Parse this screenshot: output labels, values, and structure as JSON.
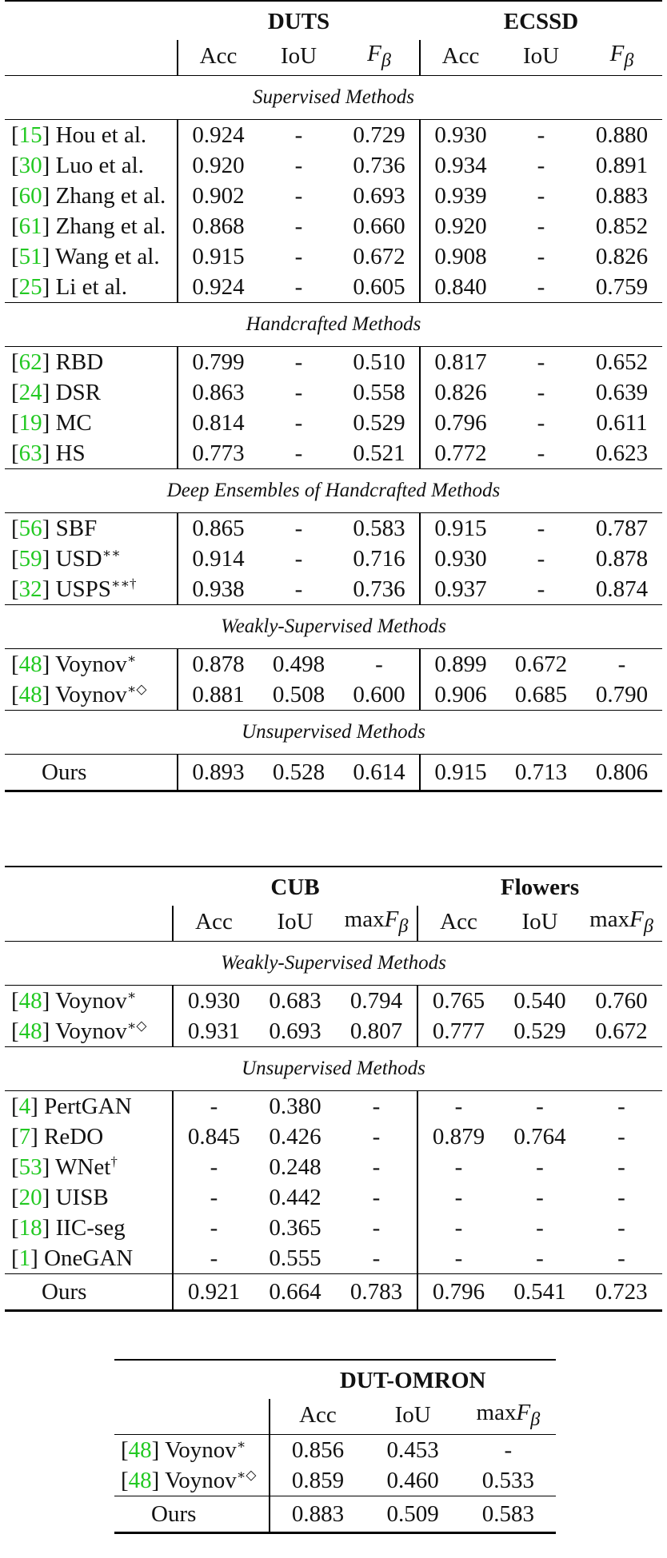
{
  "table1": {
    "datasets": [
      "DUTS",
      "ECSSD"
    ],
    "metrics": [
      "Acc",
      "IoU",
      "F",
      "β"
    ],
    "sections": [
      {
        "title": "Supervised Methods",
        "rows": [
          {
            "ref": "15",
            "name": "Hou et al.",
            "sup": "",
            "v": [
              "0.924",
              "-",
              "0.729",
              "0.930",
              "-",
              "0.880"
            ]
          },
          {
            "ref": "30",
            "name": "Luo et al.",
            "sup": "",
            "v": [
              "0.920",
              "-",
              "0.736",
              "0.934",
              "-",
              "0.891"
            ]
          },
          {
            "ref": "60",
            "name": "Zhang et al.",
            "sup": "",
            "v": [
              "0.902",
              "-",
              "0.693",
              "0.939",
              "-",
              "0.883"
            ]
          },
          {
            "ref": "61",
            "name": "Zhang et al.",
            "sup": "",
            "v": [
              "0.868",
              "-",
              "0.660",
              "0.920",
              "-",
              "0.852"
            ]
          },
          {
            "ref": "51",
            "name": "Wang et al.",
            "sup": "",
            "v": [
              "0.915",
              "-",
              "0.672",
              "0.908",
              "-",
              "0.826"
            ]
          },
          {
            "ref": "25",
            "name": "Li et al.",
            "sup": "",
            "v": [
              "0.924",
              "-",
              "0.605",
              "0.840",
              "-",
              "0.759"
            ]
          }
        ]
      },
      {
        "title": "Handcrafted Methods",
        "rows": [
          {
            "ref": "62",
            "name": "RBD",
            "sup": "",
            "v": [
              "0.799",
              "-",
              "0.510",
              "0.817",
              "-",
              "0.652"
            ]
          },
          {
            "ref": "24",
            "name": "DSR",
            "sup": "",
            "v": [
              "0.863",
              "-",
              "0.558",
              "0.826",
              "-",
              "0.639"
            ]
          },
          {
            "ref": "19",
            "name": "MC",
            "sup": "",
            "v": [
              "0.814",
              "-",
              "0.529",
              "0.796",
              "-",
              "0.611"
            ]
          },
          {
            "ref": "63",
            "name": "HS",
            "sup": "",
            "v": [
              "0.773",
              "-",
              "0.521",
              "0.772",
              "-",
              "0.623"
            ]
          }
        ]
      },
      {
        "title": "Deep Ensembles of Handcrafted Methods",
        "rows": [
          {
            "ref": "56",
            "name": "SBF",
            "sup": "",
            "v": [
              "0.865",
              "-",
              "0.583",
              "0.915",
              "-",
              "0.787"
            ]
          },
          {
            "ref": "59",
            "name": "USD",
            "sup": "∗∗",
            "v": [
              "0.914",
              "-",
              "0.716",
              "0.930",
              "-",
              "0.878"
            ]
          },
          {
            "ref": "32",
            "name": "USPS",
            "sup": "∗∗†",
            "v": [
              "0.938",
              "-",
              "0.736",
              "0.937",
              "-",
              "0.874"
            ]
          }
        ]
      },
      {
        "title": "Weakly-Supervised Methods",
        "rows": [
          {
            "ref": "48",
            "name": "Voynov",
            "sup": "∗",
            "v": [
              "0.878",
              "0.498",
              "-",
              "0.899",
              "0.672",
              "-"
            ]
          },
          {
            "ref": "48",
            "name": "Voynov",
            "sup": "∗◇",
            "v": [
              "0.881",
              "0.508",
              "0.600",
              "0.906",
              "0.685",
              "0.790"
            ]
          }
        ]
      },
      {
        "title": "Unsupervised Methods",
        "rows": [
          {
            "ref": "",
            "name": "Ours",
            "sup": "",
            "v": [
              "0.893",
              "0.528",
              "0.614",
              "0.915",
              "0.713",
              "0.806"
            ]
          }
        ]
      }
    ]
  },
  "table2": {
    "datasets": [
      "CUB",
      "Flowers"
    ],
    "metrics": [
      "Acc",
      "IoU",
      "max",
      "F",
      "β"
    ],
    "sections": [
      {
        "title": "Weakly-Supervised Methods",
        "rows": [
          {
            "ref": "48",
            "name": "Voynov",
            "sup": "∗",
            "v": [
              "0.930",
              "0.683",
              "0.794",
              "0.765",
              "0.540",
              "0.760"
            ]
          },
          {
            "ref": "48",
            "name": "Voynov",
            "sup": "∗◇",
            "v": [
              "0.931",
              "0.693",
              "0.807",
              "0.777",
              "0.529",
              "0.672"
            ]
          }
        ]
      },
      {
        "title": "Unsupervised Methods",
        "rows": [
          {
            "ref": "4",
            "name": "PertGAN",
            "sup": "",
            "v": [
              "-",
              "0.380",
              "-",
              "-",
              "-",
              "-"
            ]
          },
          {
            "ref": "7",
            "name": "ReDO",
            "sup": "",
            "v": [
              "0.845",
              "0.426",
              "-",
              "0.879",
              "0.764",
              "-"
            ]
          },
          {
            "ref": "53",
            "name": "WNet",
            "sup": "†",
            "v": [
              "-",
              "0.248",
              "-",
              "-",
              "-",
              "-"
            ]
          },
          {
            "ref": "20",
            "name": "UISB",
            "sup": "",
            "v": [
              "-",
              "0.442",
              "-",
              "-",
              "-",
              "-"
            ]
          },
          {
            "ref": "18",
            "name": "IIC-seg",
            "sup": "",
            "v": [
              "-",
              "0.365",
              "-",
              "-",
              "-",
              "-"
            ]
          },
          {
            "ref": "1",
            "name": "OneGAN",
            "sup": "",
            "v": [
              "-",
              "0.555",
              "-",
              "-",
              "-",
              "-"
            ]
          }
        ]
      },
      {
        "title": "",
        "rows": [
          {
            "ref": "",
            "name": "Ours",
            "sup": "",
            "v": [
              "0.921",
              "0.664",
              "0.783",
              "0.796",
              "0.541",
              "0.723"
            ]
          }
        ]
      }
    ]
  },
  "table3": {
    "datasets": [
      "DUT-OMRON"
    ],
    "metrics": [
      "Acc",
      "IoU",
      "max",
      "F",
      "β"
    ],
    "sections": [
      {
        "title": "",
        "rows": [
          {
            "ref": "48",
            "name": "Voynov",
            "sup": "∗",
            "v": [
              "0.856",
              "0.453",
              "-"
            ]
          },
          {
            "ref": "48",
            "name": "Voynov",
            "sup": "∗◇",
            "v": [
              "0.859",
              "0.460",
              "0.533"
            ]
          }
        ]
      },
      {
        "title": "",
        "rows": [
          {
            "ref": "",
            "name": "Ours",
            "sup": "",
            "v": [
              "0.883",
              "0.509",
              "0.583"
            ]
          }
        ]
      }
    ]
  }
}
